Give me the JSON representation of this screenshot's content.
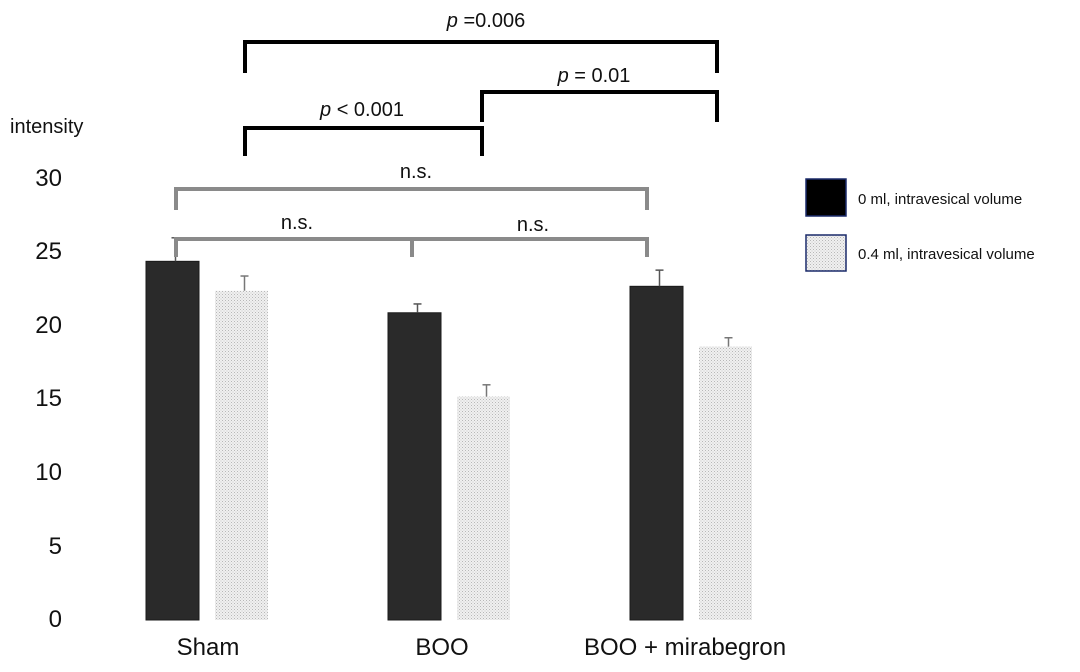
{
  "chart_data": {
    "type": "bar",
    "ylabel": "intensity",
    "ylim": [
      0,
      30
    ],
    "yticks": [
      "0",
      "5",
      "10",
      "15",
      "20",
      "25",
      "30"
    ],
    "grid": false,
    "legend_position": "right",
    "categories": [
      "Sham",
      "BOO",
      "BOO + mirabegron"
    ],
    "series": [
      {
        "name": "0 ml, intravesical volume",
        "color": "#2a2a2a",
        "values": [
          24.4,
          20.9,
          22.7
        ],
        "errors": [
          1.6,
          0.6,
          1.1
        ]
      },
      {
        "name": "0.4 ml, intravesical volume",
        "color": "#e0e0e0",
        "values": [
          22.4,
          15.2,
          18.6
        ],
        "errors": [
          1.0,
          0.8,
          0.6
        ]
      }
    ],
    "annotations": {
      "significant": [
        {
          "p_symbol": "p",
          "text": " =0.006"
        },
        {
          "p_symbol": "p",
          "text": " = 0.01"
        },
        {
          "p_symbol": "p",
          "text": " < 0.001"
        }
      ],
      "not_significant": [
        "n.s.",
        "n.s.",
        "n.s."
      ]
    }
  }
}
